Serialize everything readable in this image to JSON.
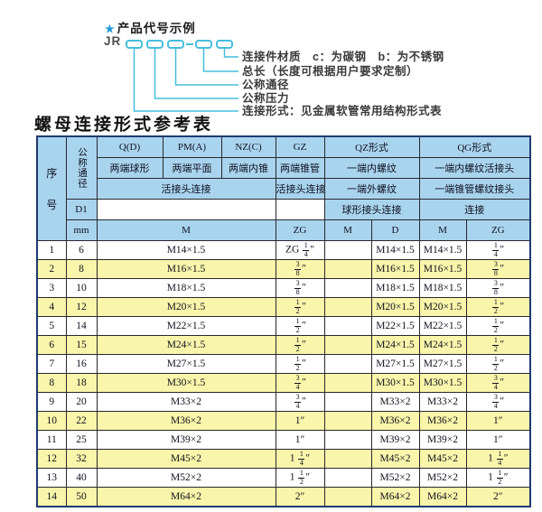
{
  "colors": {
    "callout_cyan": "#45bedd",
    "star_blue": "#2199d6",
    "table_header_bg": "#a9d4ee",
    "row_yellow": "#f9f5aa",
    "outer_border_navy": "#1e3a6e"
  },
  "diagram": {
    "star": "★",
    "heading": "产品代号示例",
    "prefix_code": "JR",
    "labels": [
      "连接件材质　c：为碳钢　b：为不锈钢",
      "总长（长度可根据用户要求定制）",
      "公称通径",
      "公称压力",
      "连接形式：见金属软管常用结构形式表"
    ]
  },
  "title": "螺母连接形式参考表",
  "table": {
    "header": {
      "seq_chars": [
        "序",
        "号"
      ],
      "nominal_diameter": "公称通径",
      "d1": "D1",
      "mm": "mm",
      "q": "Q(D)",
      "pm": "PM(A)",
      "nz": "NZ(C)",
      "gz": "GZ",
      "qz": "QZ形式",
      "qg": "QG形式",
      "q_desc": "两端球形",
      "pm_desc": "两端平面",
      "nz_desc": "两端内锥",
      "gz_desc": "两端锥管",
      "qz_desc1": "一端内螺纹",
      "qg_desc1": "一端内螺纹活接头",
      "union_conn": "活接头连接",
      "gz_conn": "活接头连接",
      "qz_desc2": "一端外螺纹",
      "qg_desc2": "一端锥管螺纹接头",
      "qz_conn": "球形接头连接",
      "qg_conn": "连接",
      "m_span": "M",
      "zg": "ZG",
      "qz_m": "M",
      "qz_d": "D",
      "qg_m": "M",
      "qg_zg": "ZG"
    },
    "rows": [
      {
        "no": "1",
        "mm": "6",
        "m": "M14×1.5",
        "gz": "ZG 1/4\"",
        "qz_m": "",
        "qz_d": "M14×1.5",
        "qg_m": "M14×1.5",
        "qg_zg": "1/4\""
      },
      {
        "no": "2",
        "mm": "8",
        "m": "M16×1.5",
        "gz": "3/8\"",
        "qz_m": "",
        "qz_d": "M16×1.5",
        "qg_m": "M16×1.5",
        "qg_zg": "3/8\""
      },
      {
        "no": "3",
        "mm": "10",
        "m": "M18×1.5",
        "gz": "3/8\"",
        "qz_m": "",
        "qz_d": "M18×1.5",
        "qg_m": "M18×1.5",
        "qg_zg": "3/8\""
      },
      {
        "no": "4",
        "mm": "12",
        "m": "M20×1.5",
        "gz": "1/2\"",
        "qz_m": "",
        "qz_d": "M20×1.5",
        "qg_m": "M20×1.5",
        "qg_zg": "1/2\""
      },
      {
        "no": "5",
        "mm": "14",
        "m": "M22×1.5",
        "gz": "1/2\"",
        "qz_m": "",
        "qz_d": "M22×1.5",
        "qg_m": "M22×1.5",
        "qg_zg": "1/2\""
      },
      {
        "no": "6",
        "mm": "15",
        "m": "M24×1.5",
        "gz": "1/2\"",
        "qz_m": "",
        "qz_d": "M24×1.5",
        "qg_m": "M24×1.5",
        "qg_zg": "1/2\""
      },
      {
        "no": "7",
        "mm": "16",
        "m": "M27×1.5",
        "gz": "1/2\"",
        "qz_m": "",
        "qz_d": "M27×1.5",
        "qg_m": "M27×1.5",
        "qg_zg": "1/2\""
      },
      {
        "no": "8",
        "mm": "18",
        "m": "M30×1.5",
        "gz": "3/4\"",
        "qz_m": "",
        "qz_d": "M30×1.5",
        "qg_m": "M30×1.5",
        "qg_zg": "3/4\""
      },
      {
        "no": "9",
        "mm": "20",
        "m": "M33×2",
        "gz": "3/4\"",
        "qz_m": "",
        "qz_d": "M33×2",
        "qg_m": "M33×2",
        "qg_zg": "3/4\""
      },
      {
        "no": "10",
        "mm": "22",
        "m": "M36×2",
        "gz": "1\"",
        "qz_m": "",
        "qz_d": "M36×2",
        "qg_m": "M36×2",
        "qg_zg": "1\""
      },
      {
        "no": "11",
        "mm": "25",
        "m": "M39×2",
        "gz": "1\"",
        "qz_m": "",
        "qz_d": "M39×2",
        "qg_m": "M39×2",
        "qg_zg": "1\""
      },
      {
        "no": "12",
        "mm": "32",
        "m": "M45×2",
        "gz": "1 1/4\"",
        "qz_m": "",
        "qz_d": "M45×2",
        "qg_m": "M45×2",
        "qg_zg": "1 1/4\""
      },
      {
        "no": "13",
        "mm": "40",
        "m": "M52×2",
        "gz": "1 1/2\"",
        "qz_m": "",
        "qz_d": "M52×2",
        "qg_m": "M52×2",
        "qg_zg": "1 1/2\""
      },
      {
        "no": "14",
        "mm": "50",
        "m": "M64×2",
        "gz": "2\"",
        "qz_m": "",
        "qz_d": "M64×2",
        "qg_m": "M64×2",
        "qg_zg": "2\""
      }
    ]
  }
}
